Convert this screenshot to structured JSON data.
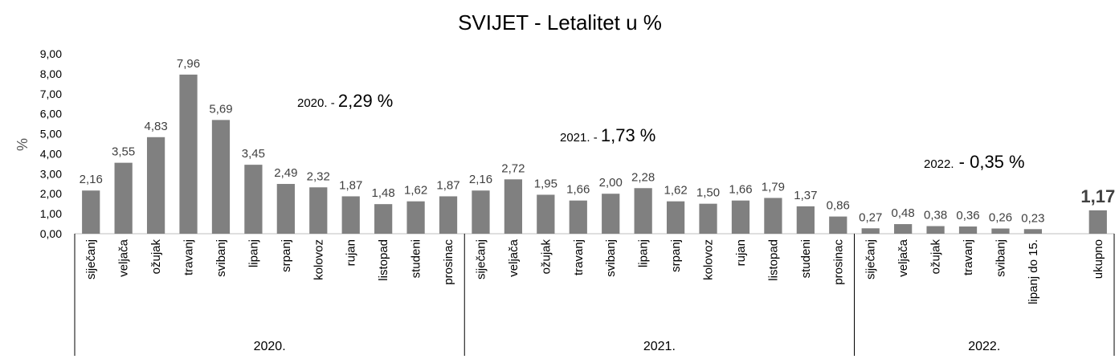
{
  "chart_data": {
    "type": "bar",
    "title": "SVIJET - Letalitet u %",
    "ylabel": "%",
    "ylim": [
      0,
      9
    ],
    "yticks": [
      "0,00",
      "1,00",
      "2,00",
      "3,00",
      "4,00",
      "5,00",
      "6,00",
      "7,00",
      "8,00",
      "9,00"
    ],
    "categories": [
      "siječanj",
      "veljača",
      "ožujak",
      "travanj",
      "svibanj",
      "lipanj",
      "srpanj",
      "kolovoz",
      "rujan",
      "listopad",
      "studeni",
      "prosinac",
      "siječanj",
      "veljača",
      "ožujak",
      "travanj",
      "svibanj",
      "lipanj",
      "srpanj",
      "kolovoz",
      "rujan",
      "listopad",
      "studeni",
      "prosinac",
      "siječanj",
      "veljača",
      "ožujak",
      "travanj",
      "svibanj",
      "lipanj do 15.",
      "",
      "ukupno"
    ],
    "values": [
      2.16,
      3.55,
      4.83,
      7.96,
      5.69,
      3.45,
      2.49,
      2.32,
      1.87,
      1.48,
      1.62,
      1.87,
      2.16,
      2.72,
      1.95,
      1.66,
      2.0,
      2.28,
      1.62,
      1.5,
      1.66,
      1.79,
      1.37,
      0.86,
      0.27,
      0.48,
      0.38,
      0.36,
      0.26,
      0.23,
      null,
      1.17
    ],
    "value_labels": [
      "2,16",
      "3,55",
      "4,83",
      "7,96",
      "5,69",
      "3,45",
      "2,49",
      "2,32",
      "1,87",
      "1,48",
      "1,62",
      "1,87",
      "2,16",
      "2,72",
      "1,95",
      "1,66",
      "2,00",
      "2,28",
      "1,62",
      "1,50",
      "1,66",
      "1,79",
      "1,37",
      "0,86",
      "0,27",
      "0,48",
      "0,38",
      "0,36",
      "0,26",
      "0,23",
      "",
      "1,17"
    ],
    "groups": [
      {
        "label": "2020.",
        "count": 12
      },
      {
        "label": "2021.",
        "count": 12
      },
      {
        "label": "2022.",
        "count": 8
      }
    ],
    "annotations": [
      {
        "prefix": "2020. - ",
        "value": "2,29 %"
      },
      {
        "prefix": "2021. - ",
        "value": "1,73 %"
      },
      {
        "prefix": "2022.",
        "value": " - 0,35 %"
      }
    ],
    "bar_color": "#808080",
    "grid": false
  }
}
